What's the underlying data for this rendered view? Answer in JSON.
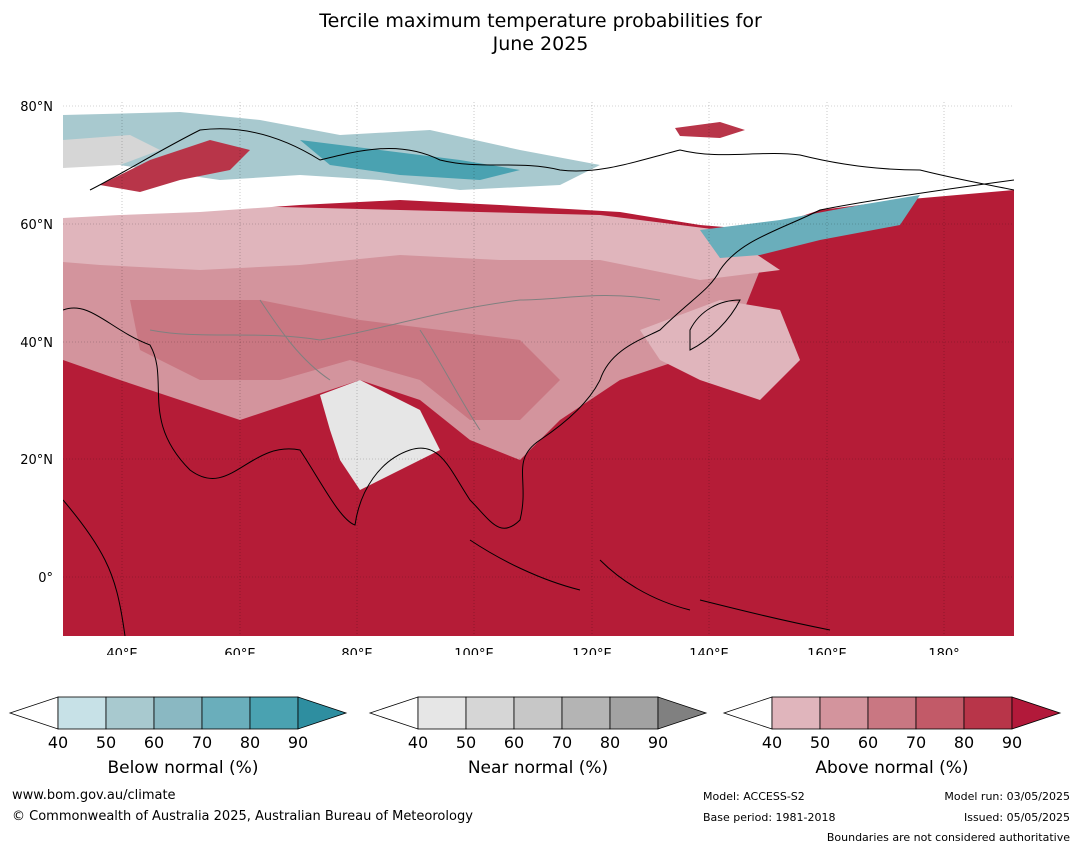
{
  "title": {
    "line1": "Tercile maximum temperature probabilities for",
    "line2": "June 2025"
  },
  "map": {
    "lat_labels": [
      "80°N",
      "60°N",
      "40°N",
      "20°N",
      "0°"
    ],
    "lon_labels": [
      "40°E",
      "60°E",
      "80°E",
      "100°E",
      "120°E",
      "140°E",
      "160°E",
      "180°"
    ],
    "ocean_color": "#b51c37",
    "coast_color": "#000000",
    "border_color": "#808080"
  },
  "colorbars": [
    {
      "label": "Below normal (%)",
      "ticks": [
        "40",
        "50",
        "60",
        "70",
        "80",
        "90"
      ],
      "colors": [
        "#ffffff",
        "#c7e1e7",
        "#a8c9cf",
        "#8ab8c2",
        "#6aaebb",
        "#4aa2b1",
        "#2e8ea0"
      ]
    },
    {
      "label": "Near normal (%)",
      "ticks": [
        "40",
        "50",
        "60",
        "70",
        "80",
        "90"
      ],
      "colors": [
        "#ffffff",
        "#e6e6e6",
        "#d6d6d6",
        "#c7c7c7",
        "#b4b4b4",
        "#a2a2a2",
        "#808080"
      ]
    },
    {
      "label": "Above normal (%)",
      "ticks": [
        "40",
        "50",
        "60",
        "70",
        "80",
        "90"
      ],
      "colors": [
        "#ffffff",
        "#e0b5bc",
        "#d3949d",
        "#c97782",
        "#c25a68",
        "#b83549",
        "#b2193a"
      ]
    }
  ],
  "footer": {
    "website": "www.bom.gov.au/climate",
    "copyright": "© Commonwealth of Australia 2025, Australian Bureau of Meteorology",
    "model": "Model: ACCESS-S2",
    "base_period": "Base period: 1981-2018",
    "model_run": "Model run: 03/05/2025",
    "issued": "Issued: 05/05/2025",
    "disclaimer": "Boundaries are not considered authoritative"
  }
}
